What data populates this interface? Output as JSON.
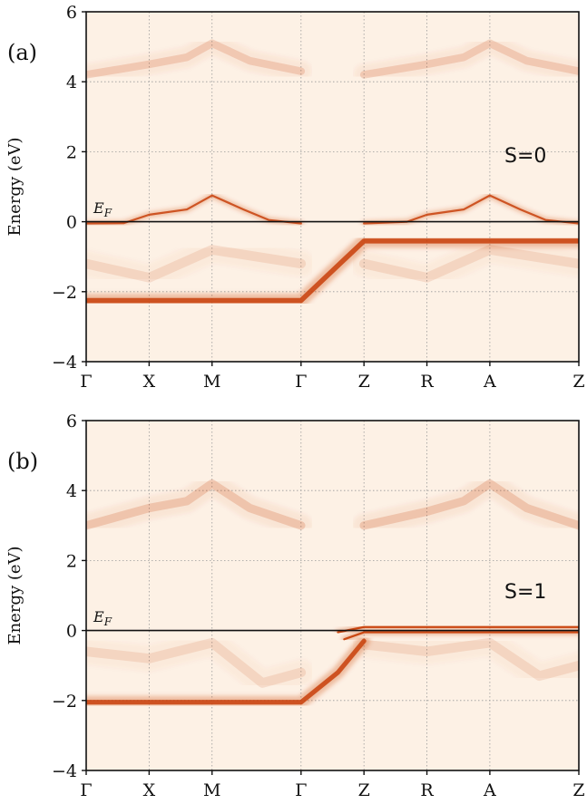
{
  "chart_data": [
    {
      "type": "heatmap",
      "panel_label": "(a)",
      "annotation": "S=0",
      "fermi_label": "E",
      "fermi_sub": "F",
      "ylabel": "Energy (eV)",
      "ylim": [
        -4,
        6
      ],
      "yticks": [
        -4,
        -2,
        0,
        2,
        4,
        6
      ],
      "ytick_labels": [
        "−4",
        "−2",
        "0",
        "2",
        "4",
        "6"
      ],
      "xtick_labels": [
        "Γ",
        "X",
        "M",
        "Γ",
        "Z",
        "R",
        "A",
        "Z"
      ],
      "xtick_positions": [
        0,
        0.5,
        1.0,
        1.7071,
        2.2071,
        2.7071,
        3.2071,
        3.9142
      ],
      "grid": true,
      "fermi_level": 0,
      "colormap": "white-to-orange (Oranges)",
      "bands": [
        {
          "name": "flat_low",
          "points": [
            [
              0,
              -2.25
            ],
            [
              1.7071,
              -2.25
            ],
            [
              2.2071,
              -0.55
            ],
            [
              3.9142,
              -0.55
            ]
          ],
          "intensity": 0.85,
          "width": 0.13
        },
        {
          "name": "cone_gm",
          "points": [
            [
              0,
              -0.05
            ],
            [
              0.3,
              -0.04
            ],
            [
              0.5,
              0.2
            ],
            [
              0.8,
              0.35
            ],
            [
              1.0,
              0.75
            ],
            [
              1.25,
              0.35
            ],
            [
              1.45,
              0.05
            ],
            [
              1.7071,
              -0.05
            ]
          ],
          "intensity": 0.85,
          "width": 0.05
        },
        {
          "name": "cone_zra",
          "points": [
            [
              2.2071,
              -0.05
            ],
            [
              2.55,
              0.0
            ],
            [
              2.7071,
              0.2
            ],
            [
              3.0,
              0.35
            ],
            [
              3.2071,
              0.75
            ],
            [
              3.45,
              0.35
            ],
            [
              3.65,
              0.05
            ],
            [
              3.9142,
              -0.05
            ]
          ],
          "intensity": 0.85,
          "width": 0.05
        },
        {
          "name": "upper_gxm",
          "points": [
            [
              0,
              4.2
            ],
            [
              0.5,
              4.5
            ],
            [
              0.8,
              4.7
            ],
            [
              1.0,
              5.1
            ],
            [
              1.3,
              4.6
            ],
            [
              1.7071,
              4.3
            ]
          ],
          "intensity": 0.18,
          "width": 0.2
        },
        {
          "name": "upper_zra",
          "points": [
            [
              2.2071,
              4.2
            ],
            [
              2.7071,
              4.5
            ],
            [
              3.0,
              4.7
            ],
            [
              3.2071,
              5.1
            ],
            [
              3.5,
              4.6
            ],
            [
              3.9142,
              4.3
            ]
          ],
          "intensity": 0.18,
          "width": 0.2
        },
        {
          "name": "mid_weak",
          "points": [
            [
              0,
              -1.2
            ],
            [
              0.5,
              -1.6
            ],
            [
              1.0,
              -0.8
            ],
            [
              1.7071,
              -1.2
            ]
          ],
          "intensity": 0.12,
          "width": 0.25
        },
        {
          "name": "mid_weak2",
          "points": [
            [
              2.2071,
              -1.2
            ],
            [
              2.7071,
              -1.6
            ],
            [
              3.2071,
              -0.8
            ],
            [
              3.9142,
              -1.2
            ]
          ],
          "intensity": 0.12,
          "width": 0.25
        }
      ]
    },
    {
      "type": "heatmap",
      "panel_label": "(b)",
      "annotation": "S=1",
      "fermi_label": "E",
      "fermi_sub": "F",
      "ylabel": "Energy (eV)",
      "ylim": [
        -4,
        6
      ],
      "yticks": [
        -4,
        -2,
        0,
        2,
        4,
        6
      ],
      "ytick_labels": [
        "−4",
        "−2",
        "0",
        "2",
        "4",
        "6"
      ],
      "xtick_labels": [
        "Γ",
        "X",
        "M",
        "Γ",
        "Z",
        "R",
        "A",
        "Z"
      ],
      "xtick_positions": [
        0,
        0.5,
        1.0,
        1.7071,
        2.2071,
        2.7071,
        3.2071,
        3.9142
      ],
      "grid": true,
      "fermi_level": 0,
      "colormap": "white-to-orange (Oranges)",
      "bands": [
        {
          "name": "flat_low",
          "points": [
            [
              0,
              -2.05
            ],
            [
              1.7071,
              -2.05
            ],
            [
              2.0,
              -1.2
            ],
            [
              2.2071,
              -0.3
            ]
          ],
          "intensity": 0.85,
          "width": 0.12
        },
        {
          "name": "z_upper",
          "points": [
            [
              2.0,
              -0.05
            ],
            [
              2.2071,
              0.1
            ],
            [
              3.9142,
              0.1
            ]
          ],
          "intensity": 0.95,
          "width": 0.04
        },
        {
          "name": "z_lower",
          "points": [
            [
              2.05,
              -0.25
            ],
            [
              2.2071,
              -0.05
            ],
            [
              3.9142,
              -0.05
            ]
          ],
          "intensity": 0.95,
          "width": 0.04
        },
        {
          "name": "upper_gxm",
          "points": [
            [
              0,
              3.0
            ],
            [
              0.5,
              3.5
            ],
            [
              0.8,
              3.7
            ],
            [
              1.0,
              4.2
            ],
            [
              1.3,
              3.5
            ],
            [
              1.7071,
              3.0
            ]
          ],
          "intensity": 0.2,
          "width": 0.22
        },
        {
          "name": "upper_zra",
          "points": [
            [
              2.2071,
              3.0
            ],
            [
              2.7071,
              3.4
            ],
            [
              3.0,
              3.7
            ],
            [
              3.2071,
              4.2
            ],
            [
              3.5,
              3.5
            ],
            [
              3.9142,
              3.0
            ]
          ],
          "intensity": 0.2,
          "width": 0.22
        },
        {
          "name": "mid_weak",
          "points": [
            [
              0,
              -0.6
            ],
            [
              0.5,
              -0.8
            ],
            [
              1.0,
              -0.35
            ],
            [
              1.4,
              -1.5
            ],
            [
              1.7071,
              -1.2
            ]
          ],
          "intensity": 0.12,
          "width": 0.25
        },
        {
          "name": "mid_weak2",
          "points": [
            [
              2.2071,
              -0.4
            ],
            [
              2.7071,
              -0.6
            ],
            [
              3.2071,
              -0.35
            ],
            [
              3.6,
              -1.3
            ],
            [
              3.9142,
              -1.0
            ]
          ],
          "intensity": 0.12,
          "width": 0.25
        }
      ]
    }
  ],
  "colors": {
    "background": "#fdf1e5",
    "band": "#c8400a",
    "axis": "#111111",
    "grid": "#9a9a9a"
  }
}
